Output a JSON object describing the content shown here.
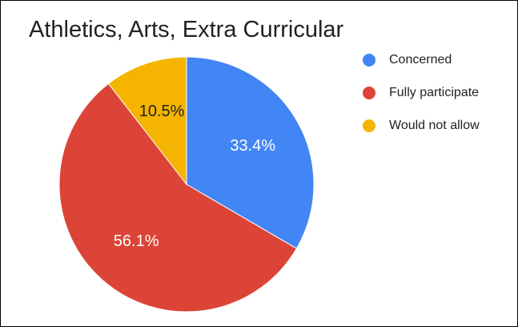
{
  "chart_data": {
    "type": "pie",
    "title": "Athletics, Arts, Extra Curricular",
    "slices": [
      {
        "label": "Concerned",
        "value": 33.4,
        "value_label": "33.4%",
        "color": "#4285F4"
      },
      {
        "label": "Fully participate",
        "value": 56.1,
        "value_label": "56.1%",
        "color": "#DB4437"
      },
      {
        "label": "Would not allow",
        "value": 10.5,
        "value_label": "10.5%",
        "color": "#F4B400"
      }
    ],
    "legend_position": "right"
  }
}
